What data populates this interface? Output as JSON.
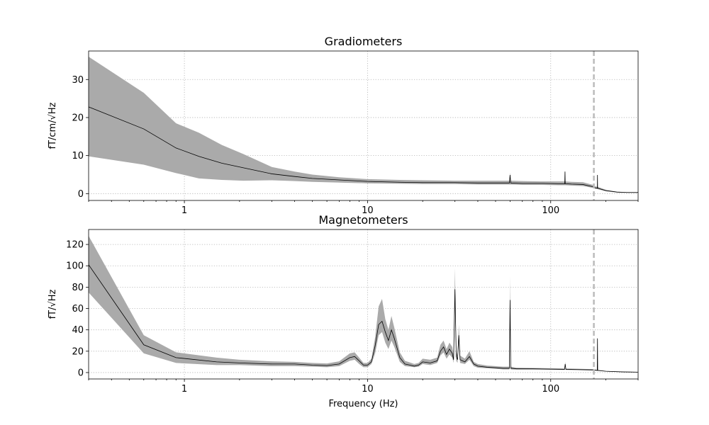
{
  "chart_data": [
    {
      "type": "area",
      "title": "Gradiometers",
      "xlabel": "",
      "ylabel": "fT/cm/√Hz",
      "x_scale": "log",
      "xlim": [
        0.3,
        300
      ],
      "ylim": [
        -1.8,
        37.5
      ],
      "x_ticks": [
        1,
        10,
        100
      ],
      "x_tick_labels": [
        "1",
        "10",
        "100"
      ],
      "y_ticks": [
        0,
        10,
        20,
        30
      ],
      "y_tick_labels": [
        "0",
        "10",
        "20",
        "30"
      ],
      "grid": true,
      "cutoff_line_x": 172,
      "series": [
        {
          "x": [
            0.3,
            0.6,
            0.9,
            1.2,
            1.6,
            2.1,
            3,
            4,
            5,
            7,
            10,
            15,
            20,
            30,
            40,
            50,
            59.5,
            60,
            60.5,
            70,
            90,
            110,
            119.3,
            119.7,
            120,
            130,
            150,
            170,
            175,
            179.7,
            180,
            180.3,
            200,
            230,
            260,
            300
          ],
          "mean": [
            22.8,
            17,
            12,
            9.8,
            8,
            6.8,
            5.2,
            4.5,
            4,
            3.6,
            3.2,
            3,
            2.9,
            2.9,
            2.8,
            2.8,
            2.8,
            4.9,
            2.8,
            2.7,
            2.7,
            2.6,
            2.6,
            5.8,
            2.6,
            2.5,
            2.4,
            1.8,
            1.5,
            1.4,
            4.9,
            1.4,
            0.8,
            0.4,
            0.3,
            0.3
          ],
          "lower": [
            9.8,
            7.6,
            5.4,
            4,
            3.6,
            3.4,
            3.5,
            3.3,
            3.1,
            2.9,
            2.7,
            2.6,
            2.5,
            2.5,
            2.4,
            2.4,
            2.4,
            2.4,
            2.4,
            2.3,
            2.3,
            2.2,
            2.2,
            2.2,
            2.2,
            2.1,
            2.0,
            1.5,
            1.3,
            1.2,
            1.2,
            1.2,
            0.6,
            0.3,
            0.2,
            0.2
          ],
          "upper": [
            36,
            26.5,
            18.5,
            16,
            12.8,
            10.4,
            7,
            5.8,
            5,
            4.3,
            3.8,
            3.6,
            3.5,
            3.4,
            3.4,
            3.4,
            3.4,
            5.5,
            3.4,
            3.3,
            3.2,
            3.2,
            3.2,
            6.2,
            3.2,
            3.1,
            3.0,
            2.3,
            1.9,
            1.8,
            5.2,
            1.8,
            1.0,
            0.5,
            0.4,
            0.4
          ]
        }
      ]
    },
    {
      "type": "area",
      "title": "Magnetometers",
      "xlabel": "Frequency (Hz)",
      "ylabel": "fT/√Hz",
      "x_scale": "log",
      "xlim": [
        0.3,
        300
      ],
      "ylim": [
        -6,
        134
      ],
      "x_ticks": [
        1,
        10,
        100
      ],
      "x_tick_labels": [
        "1",
        "10",
        "100"
      ],
      "y_ticks": [
        0,
        20,
        40,
        60,
        80,
        100,
        120
      ],
      "y_tick_labels": [
        "0",
        "20",
        "40",
        "60",
        "80",
        "100",
        "120"
      ],
      "grid": true,
      "cutoff_line_x": 172,
      "series": [
        {
          "x": [
            0.3,
            0.6,
            0.9,
            1.5,
            2,
            3,
            4,
            5,
            6,
            7,
            8,
            8.5,
            9,
            9.5,
            10,
            10.5,
            11,
            11.5,
            12,
            12.5,
            13,
            13.5,
            14,
            15,
            16,
            17,
            18,
            19,
            20,
            22,
            24,
            25,
            26,
            27,
            28,
            29,
            29.5,
            30,
            30.5,
            31,
            31.5,
            32,
            34,
            36,
            38,
            40,
            45,
            50,
            55,
            59.5,
            60,
            60.5,
            65,
            80,
            100,
            119,
            120,
            121,
            140,
            170,
            179.5,
            180,
            180.5,
            200,
            250,
            300
          ],
          "mean": [
            101,
            26,
            14,
            10,
            9,
            8,
            8,
            7,
            6.5,
            8,
            14,
            15,
            11,
            7,
            7,
            10,
            25,
            45,
            48,
            38,
            30,
            40,
            32,
            14,
            8,
            7,
            6,
            7,
            10,
            9,
            11,
            20,
            24,
            17,
            22,
            18,
            12,
            78,
            15,
            12,
            35,
            12,
            10,
            15,
            8,
            6,
            5,
            4.5,
            4,
            4,
            68,
            4,
            3.5,
            3.5,
            3.2,
            3,
            8,
            3,
            2.8,
            2.5,
            2,
            32,
            2,
            1.2,
            0.6,
            0.4
          ],
          "lower": [
            75,
            18,
            9,
            7,
            7,
            6,
            6,
            5.5,
            5,
            6,
            11,
            12,
            8,
            5,
            5,
            8,
            18,
            35,
            38,
            28,
            22,
            30,
            24,
            10,
            6,
            5.5,
            5,
            5.5,
            8,
            7,
            9,
            16,
            19,
            13,
            17,
            14,
            9,
            60,
            11,
            9,
            28,
            9,
            8,
            12,
            6,
            4.5,
            4,
            3.5,
            3,
            3,
            60,
            3,
            2.8,
            2.8,
            2.6,
            2.5,
            7,
            2.5,
            2.3,
            2,
            1.6,
            30,
            1.6,
            1,
            0.4,
            0.3
          ],
          "upper": [
            128,
            35,
            19,
            14,
            12,
            10.5,
            10,
            9,
            8.5,
            10.5,
            18,
            19,
            14,
            9,
            9,
            13,
            33,
            62,
            69,
            50,
            40,
            53,
            42,
            19,
            11,
            9.5,
            8,
            9,
            13,
            12,
            14,
            26,
            30,
            22,
            28,
            24,
            16,
            98,
            20,
            16,
            45,
            16,
            13,
            20,
            10,
            8,
            6.5,
            6,
            5.5,
            5.5,
            90,
            5.5,
            4.5,
            4.3,
            4,
            3.8,
            10,
            3.8,
            3.5,
            3.1,
            2.5,
            35,
            2.5,
            1.5,
            0.8,
            0.5
          ]
        }
      ]
    }
  ]
}
